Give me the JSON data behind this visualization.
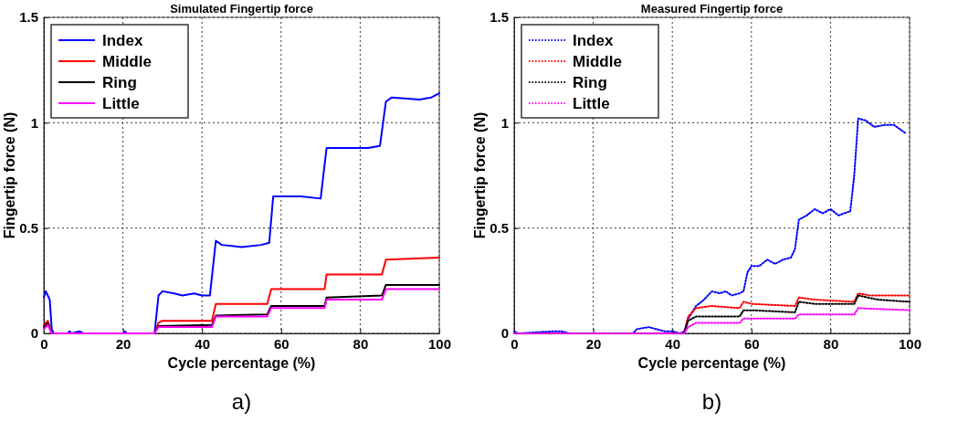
{
  "chart_data": [
    {
      "type": "line",
      "title": "Simulated Fingertip force",
      "xlabel": "Cycle percentage (%)",
      "ylabel": "Fingertip force (N)",
      "xlim": [
        0,
        100
      ],
      "ylim": [
        0,
        1.5
      ],
      "xticks": [
        0,
        20,
        40,
        60,
        80,
        100
      ],
      "yticks": [
        0,
        0.5,
        1,
        1.5
      ],
      "grid": true,
      "legend": "top left",
      "line_style": "solid",
      "annotations": [
        "a)"
      ],
      "series": [
        {
          "name": "Index",
          "color": "#0000ff",
          "x": [
            0,
            0.5,
            1.5,
            2,
            2.5,
            6,
            6.5,
            7,
            9,
            10,
            20,
            20.5,
            21,
            28,
            29,
            30,
            33,
            35,
            38,
            40,
            42,
            43.5,
            45,
            50,
            55,
            57,
            58,
            60,
            65,
            70,
            71.5,
            75,
            82,
            85,
            86.5,
            88,
            95,
            98,
            100
          ],
          "values": [
            0.17,
            0.2,
            0.16,
            0.02,
            0,
            0,
            0.01,
            0,
            0.01,
            0,
            0,
            0.01,
            0,
            0,
            0.18,
            0.2,
            0.19,
            0.18,
            0.19,
            0.18,
            0.18,
            0.44,
            0.42,
            0.41,
            0.42,
            0.43,
            0.65,
            0.65,
            0.65,
            0.64,
            0.88,
            0.88,
            0.88,
            0.89,
            1.1,
            1.12,
            1.11,
            1.12,
            1.14
          ]
        },
        {
          "name": "Middle",
          "color": "#ff0000",
          "x": [
            0,
            1,
            2,
            28,
            29,
            30,
            42.5,
            43.5,
            56.5,
            57.5,
            71,
            71.5,
            85.5,
            86.5,
            100
          ],
          "values": [
            0.04,
            0.06,
            0,
            0,
            0.05,
            0.06,
            0.06,
            0.14,
            0.14,
            0.21,
            0.21,
            0.28,
            0.28,
            0.35,
            0.36
          ]
        },
        {
          "name": "Ring",
          "color": "#000000",
          "x": [
            0,
            1,
            2,
            28,
            29,
            42.5,
            43.5,
            56.5,
            57.5,
            71,
            71.5,
            85.5,
            86.5,
            100
          ],
          "values": [
            0.03,
            0.05,
            0,
            0,
            0.035,
            0.04,
            0.085,
            0.09,
            0.13,
            0.13,
            0.17,
            0.18,
            0.23,
            0.23
          ]
        },
        {
          "name": "Little",
          "color": "#ff00ff",
          "x": [
            0,
            1,
            2,
            28,
            29,
            42.5,
            43.5,
            56.5,
            57.5,
            71,
            71.5,
            85.5,
            86.5,
            100
          ],
          "values": [
            0.02,
            0.04,
            0,
            0,
            0.03,
            0.03,
            0.08,
            0.08,
            0.12,
            0.12,
            0.16,
            0.16,
            0.21,
            0.21
          ]
        }
      ]
    },
    {
      "type": "line",
      "title": "Measured Fingertip force",
      "xlabel": "Cycle percentage (%)",
      "ylabel": "Fingertip force (N)",
      "xlim": [
        0,
        100
      ],
      "ylim": [
        0,
        1.5
      ],
      "xticks": [
        0,
        20,
        40,
        60,
        80,
        100
      ],
      "yticks": [
        0,
        0.5,
        1,
        1.5
      ],
      "grid": true,
      "legend": "top left",
      "line_style": "dotted",
      "annotations": [
        "b)"
      ],
      "series": [
        {
          "name": "Index",
          "color": "#0000ff",
          "x": [
            0,
            1,
            10,
            12,
            14,
            30,
            31,
            34,
            36,
            38,
            40,
            42,
            43,
            44,
            46,
            48,
            50,
            52,
            53.5,
            55,
            57,
            58,
            59,
            60,
            62,
            64,
            66,
            68,
            70,
            71,
            72,
            74,
            76,
            78,
            80,
            82,
            85,
            86,
            87,
            89,
            91,
            94,
            96,
            99
          ],
          "values": [
            0.01,
            0,
            0.01,
            0.01,
            0,
            0,
            0.02,
            0.03,
            0.02,
            0.01,
            0.01,
            0,
            0.01,
            0.07,
            0.13,
            0.16,
            0.2,
            0.19,
            0.2,
            0.18,
            0.19,
            0.2,
            0.29,
            0.32,
            0.32,
            0.35,
            0.33,
            0.35,
            0.36,
            0.4,
            0.54,
            0.56,
            0.59,
            0.57,
            0.59,
            0.56,
            0.58,
            0.75,
            1.02,
            1.01,
            0.98,
            0.99,
            0.99,
            0.95
          ]
        },
        {
          "name": "Middle",
          "color": "#ff0000",
          "x": [
            0,
            43,
            44,
            46,
            50,
            57,
            58,
            60,
            71,
            72,
            76,
            86,
            87,
            90,
            100
          ],
          "values": [
            0,
            0,
            0.08,
            0.12,
            0.13,
            0.12,
            0.15,
            0.14,
            0.13,
            0.17,
            0.16,
            0.15,
            0.19,
            0.18,
            0.18
          ]
        },
        {
          "name": "Ring",
          "color": "#000000",
          "x": [
            0,
            43,
            44,
            46,
            57,
            58,
            60,
            71,
            72,
            76,
            86,
            87,
            92,
            100
          ],
          "values": [
            0,
            0,
            0.06,
            0.08,
            0.08,
            0.11,
            0.11,
            0.1,
            0.15,
            0.14,
            0.14,
            0.18,
            0.16,
            0.15
          ]
        },
        {
          "name": "Little",
          "color": "#ff00ff",
          "x": [
            0,
            43,
            44,
            46,
            57,
            58,
            71,
            72,
            86,
            87,
            100
          ],
          "values": [
            0,
            0,
            0.03,
            0.05,
            0.05,
            0.07,
            0.07,
            0.09,
            0.09,
            0.12,
            0.11
          ]
        }
      ]
    }
  ]
}
